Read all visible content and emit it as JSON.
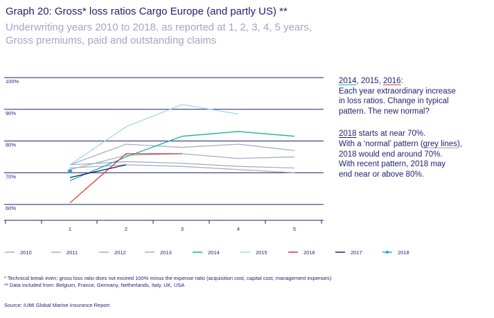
{
  "title": "Graph 20: Gross* loss ratios Cargo Europe (and partly US) **",
  "subtitle": [
    "Underwriting years 2010 to 2018, as reported at 1, 2, 3, 4, 5 years,",
    "Gross premiums, paid and outstanding claims"
  ],
  "annotation": {
    "para1": {
      "y2014": "2014",
      "sep1": ", 2015, ",
      "y2016": "2016",
      "colon": ":",
      "line1": "Each year extraordinary increase",
      "line2": "in loss ratios. Change in typical",
      "line3": "pattern. The new normal?"
    },
    "para2": {
      "y2018": "2018",
      "line0_rest": " starts at near 70%.",
      "line1_pre": "With a ‘normal’ pattern (",
      "grey_lines": "grey lines",
      "line1_post": "),",
      "line2": "2018 would end around 70%.",
      "line3": "With recent pattern, 2018 may",
      "line4": "end near or above 80%."
    }
  },
  "footnotes": [
    "*  Technical break even: gross loss ratio does not exceed 100% minus the expense ratio (acquisition cost, capital cost, management expenses)",
    "** Data included from: Belgium, France, Germany, Netherlands, Italy, UK, USA"
  ],
  "source": "Source: IUMI Global Marine Insurance Report",
  "chart_data": {
    "type": "line",
    "x": [
      1,
      2,
      3,
      4,
      5
    ],
    "x_tick_labels": [
      "1",
      "2",
      "3",
      "4",
      "5"
    ],
    "ylim": [
      55,
      100
    ],
    "y_ticks": [
      60,
      70,
      80,
      90,
      100
    ],
    "y_tick_labels": [
      "60%",
      "70%",
      "80%",
      "90%",
      "100%"
    ],
    "grid": "horizontal",
    "legend_position": "bottom",
    "series": [
      {
        "name": "2010",
        "color": "#a9acc4",
        "values": [
          71.5,
          72.5,
          72,
          71,
          70
        ]
      },
      {
        "name": "2011",
        "color": "#a9acc4",
        "values": [
          71,
          75.5,
          76,
          74.5,
          75
        ]
      },
      {
        "name": "2012",
        "color": "#a9acc4",
        "values": [
          72.5,
          79,
          78,
          79,
          77
        ]
      },
      {
        "name": "2013",
        "color": "#a9acc4",
        "values": [
          72.5,
          73.5,
          73,
          72,
          71.5
        ]
      },
      {
        "name": "2014",
        "color": "#13b3a6",
        "values": [
          67.5,
          75,
          81.5,
          83,
          81.5
        ]
      },
      {
        "name": "2015",
        "color": "#9fd5ef",
        "values": [
          72.5,
          84.5,
          91.5,
          88.5,
          null
        ]
      },
      {
        "name": "2016",
        "color": "#d9392b",
        "values": [
          60.5,
          76,
          76,
          null,
          null
        ]
      },
      {
        "name": "2017",
        "color": "#1f1d6e",
        "values": [
          68.5,
          72.5,
          null,
          null,
          null
        ]
      },
      {
        "name": "2018",
        "color": "#2b9fe0",
        "values": [
          70.5,
          null,
          null,
          null,
          null
        ]
      }
    ]
  }
}
